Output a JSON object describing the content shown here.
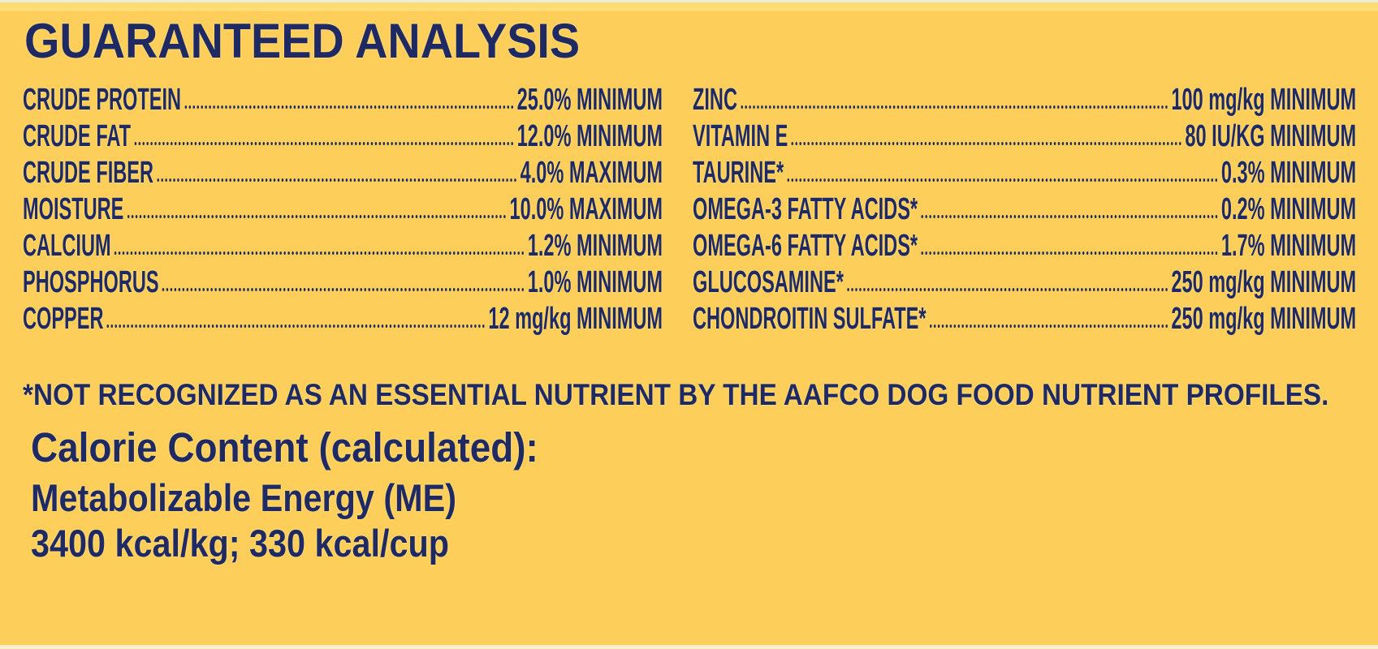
{
  "title": "GUARANTEED ANALYSIS",
  "colors": {
    "background_yellow": "#FDCF5A",
    "top_band_yellow": "#FFDB74",
    "top_edge_cream": "#F2EDDB",
    "bottom_edge_cream": "#F9EFCB",
    "text_navy": "#1F2A63"
  },
  "analysis": {
    "left": [
      {
        "label": "CRUDE PROTEIN",
        "value": "25.0%",
        "qualifier": "MINIMUM"
      },
      {
        "label": "CRUDE FAT",
        "value": "12.0%",
        "qualifier": "MINIMUM"
      },
      {
        "label": "CRUDE FIBER",
        "value": "4.0%",
        "qualifier": "MAXIMUM"
      },
      {
        "label": "MOISTURE",
        "value": "10.0%",
        "qualifier": "MAXIMUM"
      },
      {
        "label": "CALCIUM",
        "value": "1.2%",
        "qualifier": "MINIMUM"
      },
      {
        "label": "PHOSPHORUS",
        "value": "1.0%",
        "qualifier": "MINIMUM"
      },
      {
        "label": "COPPER",
        "value": "12 mg/kg",
        "qualifier": "MINIMUM"
      }
    ],
    "right": [
      {
        "label": "ZINC",
        "value": "100 mg/kg",
        "qualifier": "MINIMUM"
      },
      {
        "label": "VITAMIN E",
        "value": "80 IU/KG",
        "qualifier": "MINIMUM"
      },
      {
        "label": "TAURINE*",
        "value": "0.3%",
        "qualifier": "MINIMUM"
      },
      {
        "label": "OMEGA-3 FATTY ACIDS*",
        "value": "0.2%",
        "qualifier": "MINIMUM"
      },
      {
        "label": "OMEGA-6 FATTY ACIDS*",
        "value": "1.7%",
        "qualifier": "MINIMUM"
      },
      {
        "label": "GLUCOSAMINE*",
        "value": "250 mg/kg",
        "qualifier": "MINIMUM"
      },
      {
        "label": "CHONDROITIN SULFATE*",
        "value": "250 mg/kg",
        "qualifier": "MINIMUM"
      }
    ]
  },
  "footnote": "*NOT RECOGNIZED AS AN ESSENTIAL NUTRIENT BY THE AAFCO DOG FOOD NUTRIENT PROFILES.",
  "calorie_content": {
    "heading": "Calorie Content (calculated):",
    "energy_basis": "Metabolizable Energy (ME)",
    "energy_values": "3400 kcal/kg; 330 kcal/cup"
  }
}
